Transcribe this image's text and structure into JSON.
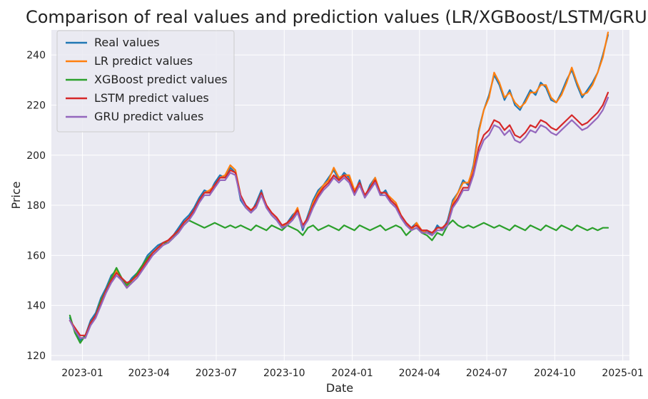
{
  "chart_data": {
    "type": "line",
    "title": "Comparison of real values and prediction values (LR/XGBoost/LSTM/GRU)",
    "xlabel": "Date",
    "ylabel": "Price",
    "xlim": [
      "2022-11-20",
      "2025-01-10"
    ],
    "ylim": [
      118,
      250
    ],
    "x_ticks": [
      "2023-01",
      "2023-04",
      "2023-07",
      "2023-10",
      "2024-01",
      "2024-04",
      "2024-07",
      "2024-10",
      "2025-01"
    ],
    "x_tick_dates": [
      "2023-01-01",
      "2023-04-01",
      "2023-07-01",
      "2023-10-01",
      "2024-01-01",
      "2024-04-01",
      "2024-07-01",
      "2024-10-01",
      "2025-01-01"
    ],
    "y_ticks": [
      120,
      140,
      160,
      180,
      200,
      220,
      240
    ],
    "grid": true,
    "legend_position": "top-left",
    "background_color": "#eaeaf2",
    "x": [
      "2022-12-15",
      "2022-12-22",
      "2022-12-29",
      "2023-01-05",
      "2023-01-12",
      "2023-01-19",
      "2023-01-26",
      "2023-02-02",
      "2023-02-09",
      "2023-02-16",
      "2023-02-23",
      "2023-03-02",
      "2023-03-09",
      "2023-03-16",
      "2023-03-23",
      "2023-03-30",
      "2023-04-06",
      "2023-04-13",
      "2023-04-20",
      "2023-04-27",
      "2023-05-04",
      "2023-05-11",
      "2023-05-18",
      "2023-05-25",
      "2023-06-01",
      "2023-06-08",
      "2023-06-15",
      "2023-06-22",
      "2023-06-29",
      "2023-07-06",
      "2023-07-13",
      "2023-07-20",
      "2023-07-27",
      "2023-08-03",
      "2023-08-10",
      "2023-08-17",
      "2023-08-24",
      "2023-08-31",
      "2023-09-07",
      "2023-09-14",
      "2023-09-21",
      "2023-09-28",
      "2023-10-05",
      "2023-10-12",
      "2023-10-19",
      "2023-10-26",
      "2023-11-02",
      "2023-11-09",
      "2023-11-16",
      "2023-11-23",
      "2023-11-30",
      "2023-12-07",
      "2023-12-14",
      "2023-12-21",
      "2023-12-28",
      "2024-01-04",
      "2024-01-11",
      "2024-01-18",
      "2024-01-25",
      "2024-02-01",
      "2024-02-08",
      "2024-02-15",
      "2024-02-22",
      "2024-02-29",
      "2024-03-07",
      "2024-03-14",
      "2024-03-21",
      "2024-03-28",
      "2024-04-04",
      "2024-04-11",
      "2024-04-18",
      "2024-04-25",
      "2024-05-02",
      "2024-05-09",
      "2024-05-16",
      "2024-05-23",
      "2024-05-30",
      "2024-06-06",
      "2024-06-13",
      "2024-06-20",
      "2024-06-27",
      "2024-07-04",
      "2024-07-11",
      "2024-07-18",
      "2024-07-25",
      "2024-08-01",
      "2024-08-08",
      "2024-08-15",
      "2024-08-22",
      "2024-08-29",
      "2024-09-05",
      "2024-09-12",
      "2024-09-19",
      "2024-09-26",
      "2024-10-03",
      "2024-10-10",
      "2024-10-17",
      "2024-10-24",
      "2024-10-31",
      "2024-11-07",
      "2024-11-14",
      "2024-11-21",
      "2024-11-28",
      "2024-12-05",
      "2024-12-12"
    ],
    "series": [
      {
        "name": "Real values",
        "color": "#1f77b4",
        "values": [
          135,
          130,
          126,
          128,
          134,
          137,
          143,
          147,
          152,
          154,
          150,
          148,
          151,
          153,
          156,
          160,
          162,
          164,
          165,
          166,
          168,
          171,
          174,
          176,
          179,
          183,
          186,
          185,
          189,
          192,
          191,
          195,
          193,
          182,
          179,
          177,
          181,
          186,
          179,
          176,
          174,
          171,
          173,
          176,
          178,
          170,
          176,
          182,
          186,
          188,
          191,
          194,
          190,
          193,
          191,
          185,
          190,
          183,
          188,
          191,
          184,
          186,
          182,
          180,
          175,
          172,
          171,
          173,
          169,
          170,
          168,
          172,
          170,
          174,
          182,
          185,
          190,
          188,
          196,
          210,
          218,
          224,
          232,
          228,
          222,
          226,
          220,
          218,
          222,
          226,
          224,
          229,
          227,
          222,
          221,
          225,
          230,
          234,
          228,
          223,
          226,
          229,
          233,
          240,
          248
        ]
      },
      {
        "name": "LR predict values",
        "color": "#ff7f0e",
        "values": [
          134,
          131,
          127,
          127,
          133,
          136,
          142,
          146,
          151,
          154,
          151,
          147,
          150,
          152,
          155,
          159,
          161,
          163,
          164,
          166,
          167,
          170,
          173,
          175,
          178,
          182,
          185,
          186,
          188,
          191,
          192,
          196,
          194,
          184,
          179,
          178,
          180,
          185,
          180,
          177,
          175,
          172,
          172,
          175,
          179,
          171,
          175,
          181,
          185,
          188,
          190,
          195,
          191,
          192,
          192,
          186,
          189,
          184,
          187,
          191,
          185,
          185,
          183,
          181,
          176,
          173,
          170,
          173,
          170,
          169,
          168,
          171,
          171,
          173,
          181,
          185,
          189,
          189,
          195,
          209,
          218,
          223,
          233,
          229,
          223,
          225,
          221,
          219,
          221,
          225,
          225,
          228,
          228,
          223,
          221,
          224,
          229,
          235,
          229,
          224,
          225,
          228,
          233,
          239,
          249
        ]
      },
      {
        "name": "XGBoost predict values",
        "color": "#2ca02c",
        "values": [
          136,
          129,
          125,
          128,
          133,
          136,
          142,
          146,
          151,
          155,
          151,
          148,
          150,
          153,
          156,
          159,
          161,
          163,
          165,
          165,
          167,
          170,
          172,
          174,
          173,
          172,
          171,
          172,
          173,
          172,
          171,
          172,
          171,
          172,
          171,
          170,
          172,
          171,
          170,
          172,
          171,
          170,
          172,
          171,
          170,
          168,
          171,
          172,
          170,
          171,
          172,
          171,
          170,
          172,
          171,
          170,
          172,
          171,
          170,
          171,
          172,
          170,
          171,
          172,
          171,
          168,
          170,
          171,
          169,
          168,
          166,
          169,
          168,
          172,
          174,
          172,
          171,
          172,
          171,
          172,
          173,
          172,
          171,
          172,
          171,
          170,
          172,
          171,
          170,
          172,
          171,
          170,
          172,
          171,
          170,
          172,
          171,
          170,
          172,
          171,
          170,
          171,
          170,
          171,
          171
        ]
      },
      {
        "name": "LSTM predict values",
        "color": "#d62728",
        "values": [
          134,
          131,
          128,
          128,
          133,
          136,
          141,
          146,
          150,
          153,
          151,
          149,
          150,
          152,
          155,
          158,
          161,
          163,
          165,
          166,
          168,
          170,
          173,
          175,
          178,
          182,
          185,
          185,
          188,
          191,
          191,
          194,
          193,
          184,
          180,
          178,
          180,
          185,
          180,
          177,
          175,
          172,
          173,
          175,
          178,
          172,
          175,
          180,
          184,
          187,
          189,
          192,
          190,
          192,
          190,
          185,
          189,
          184,
          187,
          190,
          185,
          185,
          182,
          180,
          176,
          173,
          171,
          172,
          170,
          170,
          169,
          171,
          171,
          173,
          180,
          183,
          187,
          187,
          193,
          203,
          208,
          210,
          214,
          213,
          210,
          212,
          208,
          207,
          209,
          212,
          211,
          214,
          213,
          211,
          210,
          212,
          214,
          216,
          214,
          212,
          213,
          215,
          217,
          220,
          225
        ]
      },
      {
        "name": "GRU predict values",
        "color": "#9467bd",
        "values": [
          134,
          130,
          127,
          127,
          132,
          135,
          140,
          145,
          149,
          152,
          150,
          147,
          149,
          151,
          154,
          157,
          160,
          162,
          164,
          165,
          167,
          169,
          172,
          174,
          177,
          181,
          184,
          184,
          187,
          190,
          190,
          193,
          192,
          183,
          179,
          177,
          179,
          184,
          179,
          176,
          174,
          171,
          172,
          174,
          177,
          171,
          174,
          179,
          183,
          186,
          188,
          191,
          189,
          191,
          189,
          184,
          188,
          183,
          186,
          189,
          184,
          184,
          181,
          179,
          175,
          172,
          170,
          171,
          169,
          169,
          168,
          170,
          170,
          172,
          179,
          182,
          186,
          186,
          192,
          201,
          206,
          208,
          212,
          211,
          208,
          210,
          206,
          205,
          207,
          210,
          209,
          212,
          211,
          209,
          208,
          210,
          212,
          214,
          212,
          210,
          211,
          213,
          215,
          218,
          223
        ]
      }
    ]
  }
}
